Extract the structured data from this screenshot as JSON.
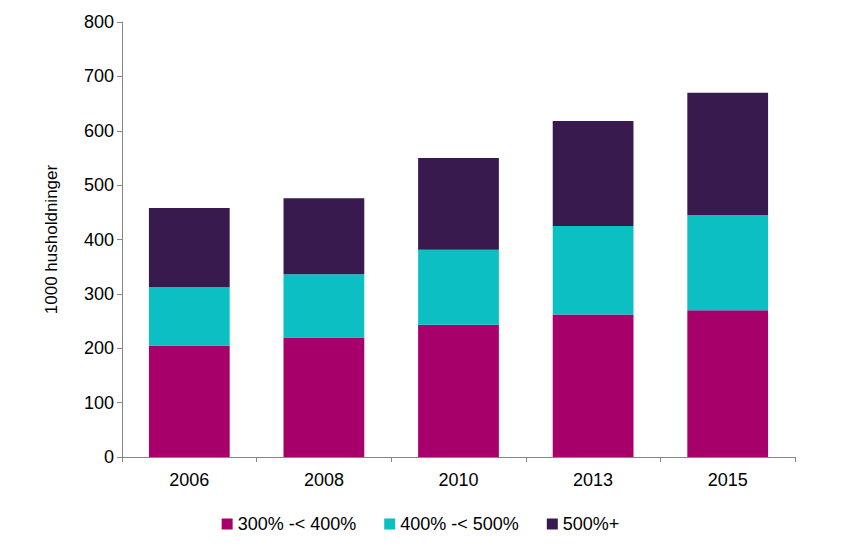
{
  "chart_data": {
    "type": "bar",
    "ylabel": "1000 husholdninger",
    "categories": [
      "2006",
      "2008",
      "2010",
      "2013",
      "2015"
    ],
    "series": [
      {
        "name": "300% -< 400%",
        "color": "#a8006b",
        "values": [
          205,
          220,
          243,
          262,
          270
        ]
      },
      {
        "name": "400% -< 500%",
        "color": "#0bbfc3",
        "values": [
          107,
          116,
          138,
          163,
          175
        ]
      },
      {
        "name": "500%+",
        "color": "#381a4e",
        "values": [
          146,
          140,
          169,
          193,
          225
        ]
      }
    ],
    "ylim": [
      0,
      800
    ],
    "yticks": [
      0,
      100,
      200,
      300,
      400,
      500,
      600,
      700,
      800
    ],
    "stacked": true,
    "grid": false,
    "legend": "bottom"
  }
}
